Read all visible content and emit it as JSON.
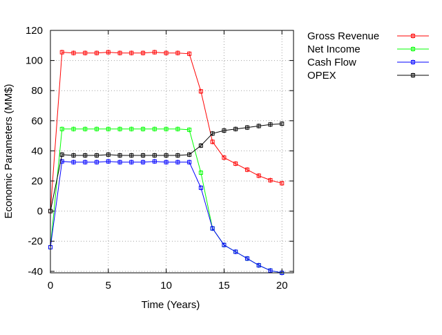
{
  "chart_data": {
    "type": "line",
    "xlabel": "Time (Years)",
    "ylabel": "Economic Parameters (MM$)",
    "xlim": [
      0,
      21
    ],
    "ylim": [
      -41,
      120
    ],
    "xticks": [
      0,
      5,
      10,
      15,
      20
    ],
    "yticks": [
      -40,
      -20,
      0,
      20,
      40,
      60,
      80,
      100,
      120
    ],
    "grid": true,
    "legend_position": "outside-top-right",
    "x": [
      0,
      1,
      2,
      3,
      4,
      5,
      6,
      7,
      8,
      9,
      10,
      11,
      12,
      13,
      14,
      15,
      16,
      17,
      18,
      19,
      20
    ],
    "series": [
      {
        "name": "Gross Revenue",
        "color": "#ff0000",
        "values": [
          0,
          105.5,
          105,
          105,
          105,
          105.5,
          105,
          105,
          105,
          105.5,
          105,
          105,
          104.5,
          79.5,
          46,
          35.5,
          31.5,
          27.5,
          23.5,
          20.5,
          18.5
        ]
      },
      {
        "name": "Net Income",
        "color": "#00ff00",
        "values": [
          -24,
          54.5,
          54.5,
          54.5,
          54.5,
          54.5,
          54.5,
          54.5,
          54.5,
          54.5,
          54.5,
          54.5,
          54,
          25.5,
          -11.5,
          -22.5,
          -27,
          -31.5,
          -36,
          -39.5,
          -41
        ]
      },
      {
        "name": "Cash Flow",
        "color": "#0000ff",
        "values": [
          -24,
          33,
          32.5,
          32.5,
          32.5,
          33,
          32.5,
          32.5,
          32.5,
          33,
          32.5,
          32.5,
          32.5,
          15.5,
          -11.5,
          -22.5,
          -27,
          -31.5,
          -36,
          -39.5,
          -41
        ]
      },
      {
        "name": "OPEX",
        "color": "#000000",
        "values": [
          0,
          37.5,
          37,
          37,
          37,
          37.5,
          37,
          37,
          37,
          37,
          37,
          37,
          37.5,
          43.5,
          51.5,
          53.5,
          54.5,
          55.5,
          56.5,
          57.5,
          58
        ]
      }
    ]
  }
}
